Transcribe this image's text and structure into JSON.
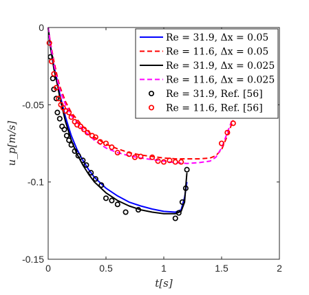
{
  "chart_data": {
    "type": "line",
    "title": "",
    "xlabel": "t[s]",
    "ylabel": "u_p[m/s]",
    "xlim": [
      0,
      2
    ],
    "ylim": [
      -0.15,
      0
    ],
    "x_ticks": [
      0,
      0.5,
      1,
      1.5,
      2
    ],
    "x_tick_labels": [
      "0",
      "0.5",
      "1",
      "1.5",
      "2"
    ],
    "y_ticks": [
      0,
      -0.05,
      -0.1,
      -0.15
    ],
    "y_tick_labels": [
      "0",
      "-0.05",
      "-0.1",
      "-0.15"
    ],
    "grid": false,
    "legend_position": "top-right",
    "series": [
      {
        "name": "Re = 31.9, Δx = 0.05",
        "kind": "line",
        "color": "#0000ff",
        "dash": "solid",
        "x": [
          0,
          0.02,
          0.05,
          0.08,
          0.1,
          0.15,
          0.2,
          0.25,
          0.3,
          0.35,
          0.4,
          0.5,
          0.6,
          0.7,
          0.8,
          0.9,
          1.0,
          1.1,
          1.15,
          1.18,
          1.2
        ],
        "y": [
          0,
          -0.012,
          -0.025,
          -0.035,
          -0.043,
          -0.058,
          -0.07,
          -0.079,
          -0.086,
          -0.092,
          -0.097,
          -0.104,
          -0.109,
          -0.113,
          -0.1155,
          -0.1175,
          -0.119,
          -0.1195,
          -0.118,
          -0.11,
          -0.1
        ]
      },
      {
        "name": "Re = 11.6, Δx = 0.05",
        "kind": "line",
        "color": "#ff0000",
        "dash": "dashed",
        "x": [
          0,
          0.02,
          0.05,
          0.08,
          0.1,
          0.15,
          0.2,
          0.3,
          0.4,
          0.5,
          0.6,
          0.7,
          0.8,
          0.9,
          1.0,
          1.1,
          1.2,
          1.3,
          1.4,
          1.45,
          1.5,
          1.55,
          1.6
        ],
        "y": [
          0,
          -0.01,
          -0.022,
          -0.032,
          -0.038,
          -0.048,
          -0.055,
          -0.064,
          -0.071,
          -0.0755,
          -0.0785,
          -0.081,
          -0.0825,
          -0.0835,
          -0.0845,
          -0.085,
          -0.085,
          -0.085,
          -0.0845,
          -0.083,
          -0.079,
          -0.07,
          -0.06
        ]
      },
      {
        "name": "Re = 31.9, Δx = 0.025",
        "kind": "line",
        "color": "#000000",
        "dash": "solid",
        "x": [
          0,
          0.02,
          0.05,
          0.08,
          0.1,
          0.15,
          0.2,
          0.25,
          0.3,
          0.35,
          0.4,
          0.5,
          0.6,
          0.7,
          0.8,
          0.9,
          1.0,
          1.1,
          1.15,
          1.18,
          1.19,
          1.2
        ],
        "y": [
          0,
          -0.013,
          -0.027,
          -0.037,
          -0.045,
          -0.061,
          -0.073,
          -0.082,
          -0.089,
          -0.095,
          -0.1,
          -0.107,
          -0.112,
          -0.1155,
          -0.118,
          -0.1195,
          -0.1205,
          -0.1205,
          -0.119,
          -0.113,
          -0.103,
          -0.094
        ]
      },
      {
        "name": "Re = 11.6, Δx = 0.025",
        "kind": "line",
        "color": "#ff00ff",
        "dash": "dashed",
        "x": [
          0,
          0.02,
          0.05,
          0.08,
          0.1,
          0.15,
          0.2,
          0.3,
          0.4,
          0.5,
          0.6,
          0.7,
          0.8,
          0.9,
          1.0,
          1.1,
          1.2,
          1.3,
          1.4,
          1.45,
          1.5,
          1.55,
          1.6
        ],
        "y": [
          0,
          -0.011,
          -0.024,
          -0.034,
          -0.04,
          -0.05,
          -0.057,
          -0.066,
          -0.073,
          -0.078,
          -0.081,
          -0.083,
          -0.0845,
          -0.0855,
          -0.0865,
          -0.0875,
          -0.088,
          -0.0875,
          -0.0865,
          -0.084,
          -0.078,
          -0.068,
          -0.058
        ]
      },
      {
        "name": "Re = 31.9, Ref. [56]",
        "kind": "markers",
        "color": "#000000",
        "marker": "circle",
        "x": [
          0.02,
          0.04,
          0.05,
          0.07,
          0.08,
          0.1,
          0.12,
          0.14,
          0.16,
          0.18,
          0.2,
          0.23,
          0.26,
          0.3,
          0.33,
          0.37,
          0.41,
          0.46,
          0.5,
          0.55,
          0.6,
          0.67,
          0.78,
          1.1,
          1.13,
          1.16,
          1.19,
          1.2
        ],
        "y": [
          -0.019,
          -0.033,
          -0.04,
          -0.046,
          -0.055,
          -0.059,
          -0.064,
          -0.066,
          -0.07,
          -0.073,
          -0.076,
          -0.08,
          -0.083,
          -0.086,
          -0.089,
          -0.094,
          -0.098,
          -0.102,
          -0.1105,
          -0.112,
          -0.1145,
          -0.1195,
          -0.118,
          -0.1235,
          -0.12,
          -0.113,
          -0.104,
          -0.092
        ]
      },
      {
        "name": "Re = 11.6, Ref. [56]",
        "kind": "markers",
        "color": "#ff0000",
        "marker": "circle",
        "x": [
          0.01,
          0.03,
          0.05,
          0.07,
          0.09,
          0.11,
          0.13,
          0.15,
          0.18,
          0.2,
          0.23,
          0.25,
          0.28,
          0.31,
          0.34,
          0.38,
          0.41,
          0.45,
          0.5,
          0.55,
          0.6,
          0.7,
          0.75,
          0.8,
          0.9,
          0.95,
          1.0,
          1.05,
          1.1,
          1.15,
          1.5,
          1.55,
          1.6
        ],
        "y": [
          -0.01,
          -0.022,
          -0.03,
          -0.039,
          -0.046,
          -0.05,
          -0.052,
          -0.054,
          -0.055,
          -0.058,
          -0.061,
          -0.063,
          -0.064,
          -0.066,
          -0.068,
          -0.07,
          -0.071,
          -0.074,
          -0.075,
          -0.0775,
          -0.081,
          -0.082,
          -0.084,
          -0.0835,
          -0.084,
          -0.0865,
          -0.087,
          -0.086,
          -0.087,
          -0.087,
          -0.075,
          -0.068,
          -0.062
        ]
      }
    ],
    "legend_entries": [
      "Re = 31.9, Δx = 0.05",
      "Re = 11.6, Δx = 0.05",
      "Re = 31.9, Δx = 0.025",
      "Re = 11.6, Δx = 0.025",
      "Re = 31.9, Ref. [56]",
      "Re = 11.6, Ref. [56]"
    ]
  }
}
